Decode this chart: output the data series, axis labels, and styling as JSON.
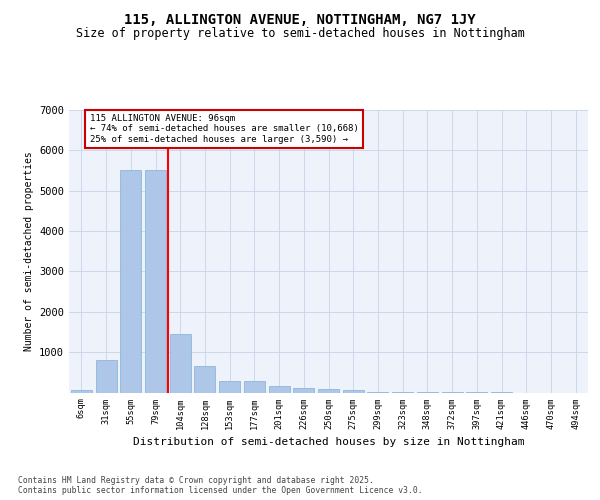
{
  "title": "115, ALLINGTON AVENUE, NOTTINGHAM, NG7 1JY",
  "subtitle": "Size of property relative to semi-detached houses in Nottingham",
  "xlabel": "Distribution of semi-detached houses by size in Nottingham",
  "ylabel": "Number of semi-detached properties",
  "categories": [
    "6sqm",
    "31sqm",
    "55sqm",
    "79sqm",
    "104sqm",
    "128sqm",
    "153sqm",
    "177sqm",
    "201sqm",
    "226sqm",
    "250sqm",
    "275sqm",
    "299sqm",
    "323sqm",
    "348sqm",
    "372sqm",
    "397sqm",
    "421sqm",
    "446sqm",
    "470sqm",
    "494sqm"
  ],
  "values": [
    50,
    800,
    5520,
    5520,
    1450,
    650,
    280,
    280,
    160,
    100,
    80,
    50,
    10,
    5,
    3,
    2,
    1,
    1,
    0,
    0,
    0
  ],
  "bar_color": "#aec6e8",
  "bar_edge_color": "#7fb0d8",
  "red_line_x": 3.5,
  "red_line_label": "115 ALLINGTON AVENUE: 96sqm",
  "annotation_smaller": "← 74% of semi-detached houses are smaller (10,668)",
  "annotation_larger": "25% of semi-detached houses are larger (3,590) →",
  "ylim": [
    0,
    7000
  ],
  "yticks": [
    0,
    1000,
    2000,
    3000,
    4000,
    5000,
    6000,
    7000
  ],
  "bg_color": "#eef2fb",
  "grid_color": "#c8d4e8",
  "footer": "Contains HM Land Registry data © Crown copyright and database right 2025.\nContains public sector information licensed under the Open Government Licence v3.0.",
  "annotation_box_color": "#cc0000",
  "title_fontsize": 10,
  "subtitle_fontsize": 8.5
}
